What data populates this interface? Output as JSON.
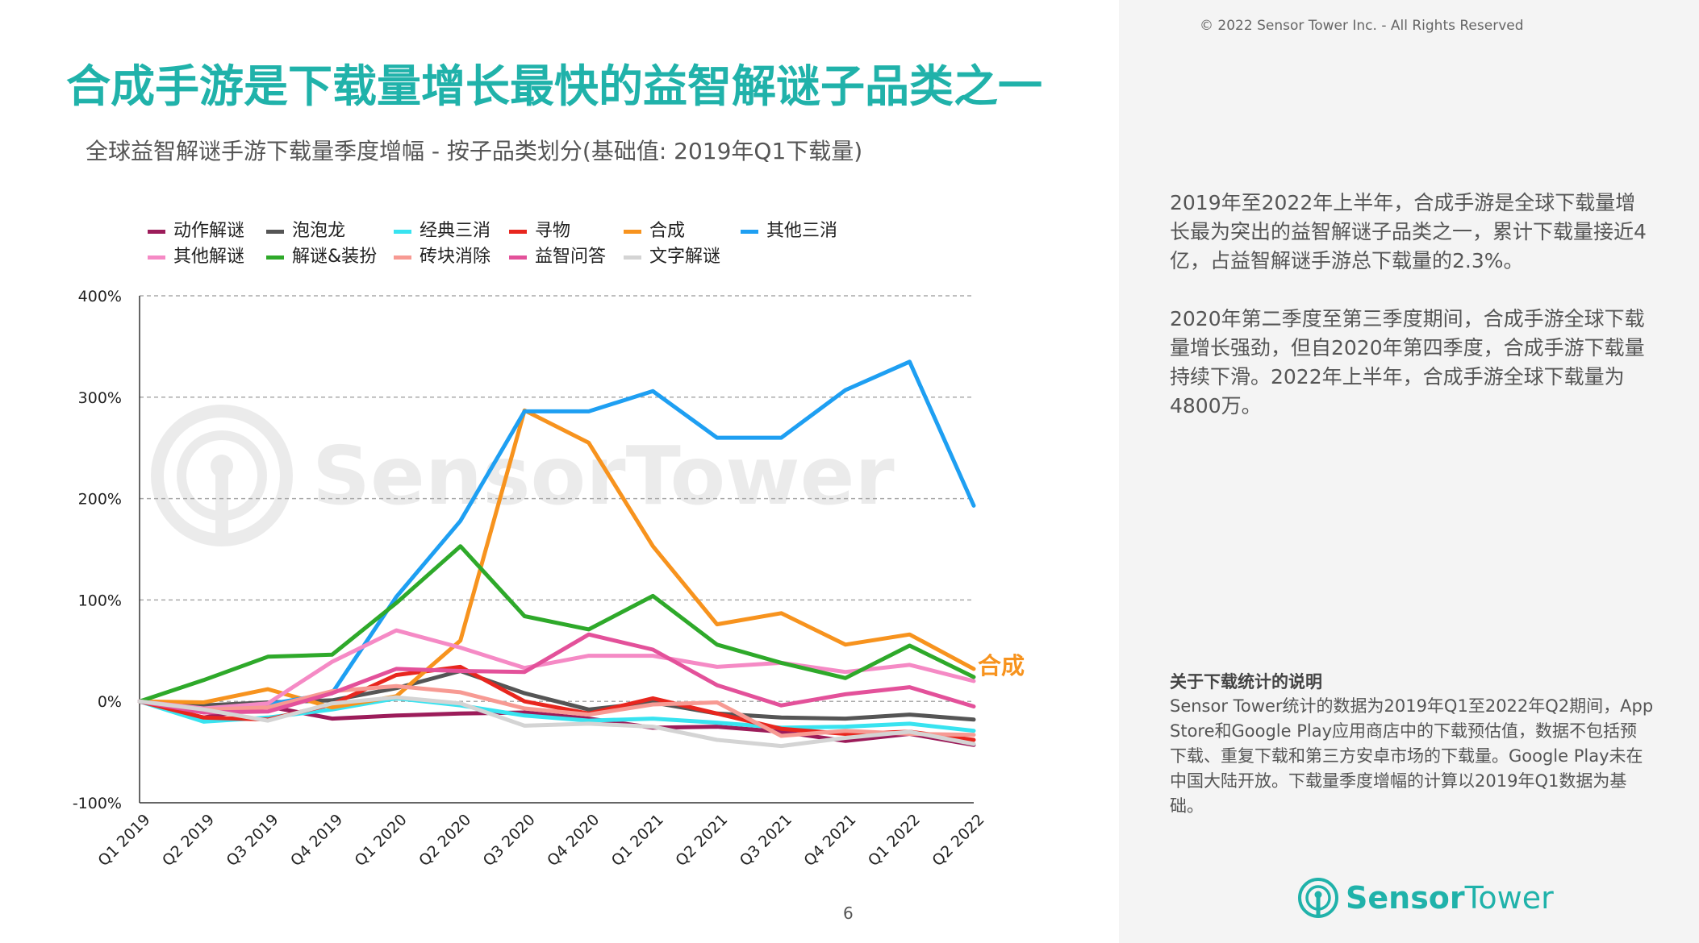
{
  "copyright": "© 2022 Sensor Tower Inc. - All Rights Reserved",
  "title": "合成手游是下载量增长最快的益智解谜子品类之一",
  "subtitle": "全球益智解谜手游下载量季度增幅 - 按子品类划分(基础值: 2019年Q1下载量)",
  "paragraph1": "2019年至2022年上半年，合成手游是全球下载量增长最为突出的益智解谜子品类之一，累计下载量接近4亿，占益智解谜手游总下载量的2.3%。",
  "paragraph2": "2020年第二季度至第三季度期间，合成手游全球下载量增长强劲，但自2020年第四季度，合成手游下载量持续下滑。2022年上半年，合成手游全球下载量为4800万。",
  "note_title": "关于下载统计的说明",
  "note_body": "Sensor Tower统计的数据为2019年Q1至2022年Q2期间，App Store和Google Play应用商店中的下载预估值，数据不包括预下载、重复下载和第三方安卓市场的下载量。Google Play未在中国大陆开放。下载量季度增幅的计算以2019年Q1数据为基础。",
  "page_number": "6",
  "logo": {
    "brand": "SensorTower",
    "text_a": "Sensor",
    "text_b": "Tower",
    "icon": "sensor-tower-logo-icon"
  },
  "accent_color": "#20b2aa",
  "chart_data": {
    "type": "line",
    "title": "全球益智解谜手游下载量季度增幅 - 按子品类划分(基础值: 2019年Q1下载量)",
    "xlabel": "",
    "ylabel": "",
    "ylim": [
      -100,
      400
    ],
    "yticks": [
      -100,
      0,
      100,
      200,
      300,
      400
    ],
    "ytick_labels": [
      "-100%",
      "0%",
      "100%",
      "200%",
      "300%",
      "400%"
    ],
    "grid": true,
    "legend_position": "top",
    "categories": [
      "Q1 2019",
      "Q2 2019",
      "Q3 2019",
      "Q4 2019",
      "Q1 2020",
      "Q2 2020",
      "Q3 2020",
      "Q4 2020",
      "Q1 2021",
      "Q2 2021",
      "Q3 2021",
      "Q4 2021",
      "Q1 2022",
      "Q2 2022"
    ],
    "annotation": {
      "text": "合成",
      "color": "#f7931e"
    },
    "series": [
      {
        "name": "动作解谜",
        "color": "#9c1c5a",
        "values": [
          0,
          -16,
          -5,
          -17,
          -14,
          -12,
          -11,
          -17,
          -26,
          -25,
          -30,
          -39,
          -32,
          -43
        ]
      },
      {
        "name": "泡泡龙",
        "color": "#555555",
        "values": [
          0,
          -4,
          -1,
          1,
          13,
          30,
          8,
          -8,
          -1,
          -12,
          -16,
          -17,
          -13,
          -18
        ]
      },
      {
        "name": "经典三消",
        "color": "#38e3f0",
        "values": [
          0,
          -20,
          -16,
          -8,
          3,
          -4,
          -14,
          -19,
          -17,
          -21,
          -26,
          -25,
          -22,
          -29
        ]
      },
      {
        "name": "寻物",
        "color": "#e8261e",
        "values": [
          0,
          -16,
          -18,
          -3,
          26,
          34,
          0,
          -12,
          3,
          -12,
          -27,
          -32,
          -30,
          -38
        ]
      },
      {
        "name": "合成",
        "color": "#f7931e",
        "values": [
          0,
          -1,
          12,
          -6,
          5,
          60,
          287,
          255,
          153,
          76,
          87,
          56,
          66,
          32
        ]
      },
      {
        "name": "其他三消",
        "color": "#1e9ff2",
        "values": [
          0,
          -10,
          -3,
          8,
          103,
          178,
          286,
          286,
          306,
          260,
          260,
          307,
          335,
          193
        ]
      },
      {
        "name": "其他解谜",
        "color": "#f58ac5",
        "values": [
          0,
          -7,
          -2,
          39,
          70,
          53,
          33,
          45,
          45,
          34,
          38,
          29,
          36,
          20
        ]
      },
      {
        "name": "解谜&装扮",
        "color": "#2ea92a",
        "values": [
          0,
          21,
          44,
          46,
          97,
          153,
          84,
          71,
          104,
          56,
          38,
          23,
          55,
          24
        ]
      },
      {
        "name": "砖块消除",
        "color": "#f79a93",
        "values": [
          0,
          -8,
          -6,
          10,
          15,
          9,
          -7,
          -13,
          -3,
          -1,
          -34,
          -29,
          -32,
          -33
        ]
      },
      {
        "name": "益智问答",
        "color": "#e3519a",
        "values": [
          0,
          -11,
          -10,
          8,
          32,
          30,
          29,
          66,
          51,
          16,
          -4,
          7,
          14,
          -5
        ]
      },
      {
        "name": "文字解谜",
        "color": "#d4d4d4",
        "values": [
          0,
          -8,
          -19,
          -2,
          4,
          -2,
          -24,
          -22,
          -25,
          -38,
          -44,
          -36,
          -30,
          -42
        ]
      }
    ]
  }
}
